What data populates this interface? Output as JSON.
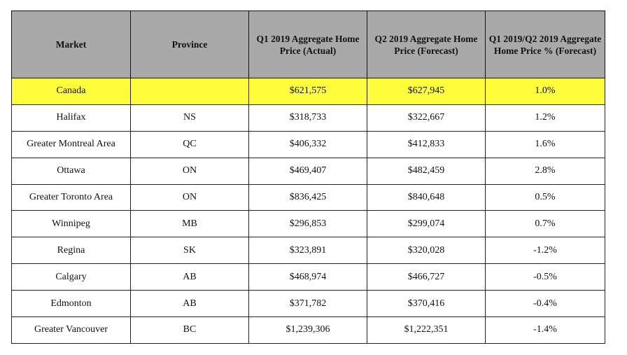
{
  "chart_data": {
    "type": "table",
    "columns": [
      "Market",
      "Province",
      "Q1 2019 Aggregate Home Price (Actual)",
      "Q2 2019 Aggregate Home Price (Forecast)",
      "Q1 2019/Q2 2019 Aggregate Home Price % (Forecast)"
    ],
    "rows": [
      [
        "Canada",
        "",
        "$621,575",
        "$627,945",
        "1.0%"
      ],
      [
        "Halifax",
        "NS",
        "$318,733",
        "$322,667",
        "1.2%"
      ],
      [
        "Greater Montreal Area",
        "QC",
        "$406,332",
        "$412,833",
        "1.6%"
      ],
      [
        "Ottawa",
        "ON",
        "$469,407",
        "$482,459",
        "2.8%"
      ],
      [
        "Greater Toronto Area",
        "ON",
        "$836,425",
        "$840,648",
        "0.5%"
      ],
      [
        "Winnipeg",
        "MB",
        "$296,853",
        "$299,074",
        "0.7%"
      ],
      [
        "Regina",
        "SK",
        "$323,891",
        "$320,028",
        "-1.2%"
      ],
      [
        "Calgary",
        "AB",
        "$468,974",
        "$466,727",
        "-0.5%"
      ],
      [
        "Edmonton",
        "AB",
        "$371,782",
        "$370,416",
        "-0.4%"
      ],
      [
        "Greater Vancouver",
        "BC",
        "$1,239,306",
        "$1,222,351",
        "-1.4%"
      ]
    ],
    "highlight_row_index": 0
  },
  "colors": {
    "header_background": "#a9a9a9",
    "highlight_row": "#fffc3c",
    "border": "#222222"
  }
}
